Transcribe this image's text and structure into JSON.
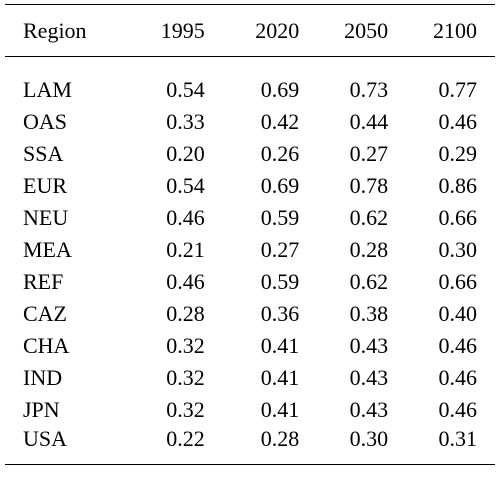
{
  "table": {
    "headers": [
      "Region",
      "1995",
      "2020",
      "2050",
      "2100"
    ],
    "rows": [
      [
        "LAM",
        "0.54",
        "0.69",
        "0.73",
        "0.77"
      ],
      [
        "OAS",
        "0.33",
        "0.42",
        "0.44",
        "0.46"
      ],
      [
        "SSA",
        "0.20",
        "0.26",
        "0.27",
        "0.29"
      ],
      [
        "EUR",
        "0.54",
        "0.69",
        "0.78",
        "0.86"
      ],
      [
        "NEU",
        "0.46",
        "0.59",
        "0.62",
        "0.66"
      ],
      [
        "MEA",
        "0.21",
        "0.27",
        "0.28",
        "0.30"
      ],
      [
        "REF",
        "0.46",
        "0.59",
        "0.62",
        "0.66"
      ],
      [
        "CAZ",
        "0.28",
        "0.36",
        "0.38",
        "0.40"
      ],
      [
        "CHA",
        "0.32",
        "0.41",
        "0.43",
        "0.46"
      ],
      [
        "IND",
        "0.32",
        "0.41",
        "0.43",
        "0.46"
      ],
      [
        "JPN",
        "0.32",
        "0.41",
        "0.43",
        "0.46"
      ],
      [
        "USA",
        "0.22",
        "0.28",
        "0.30",
        "0.31"
      ]
    ]
  }
}
